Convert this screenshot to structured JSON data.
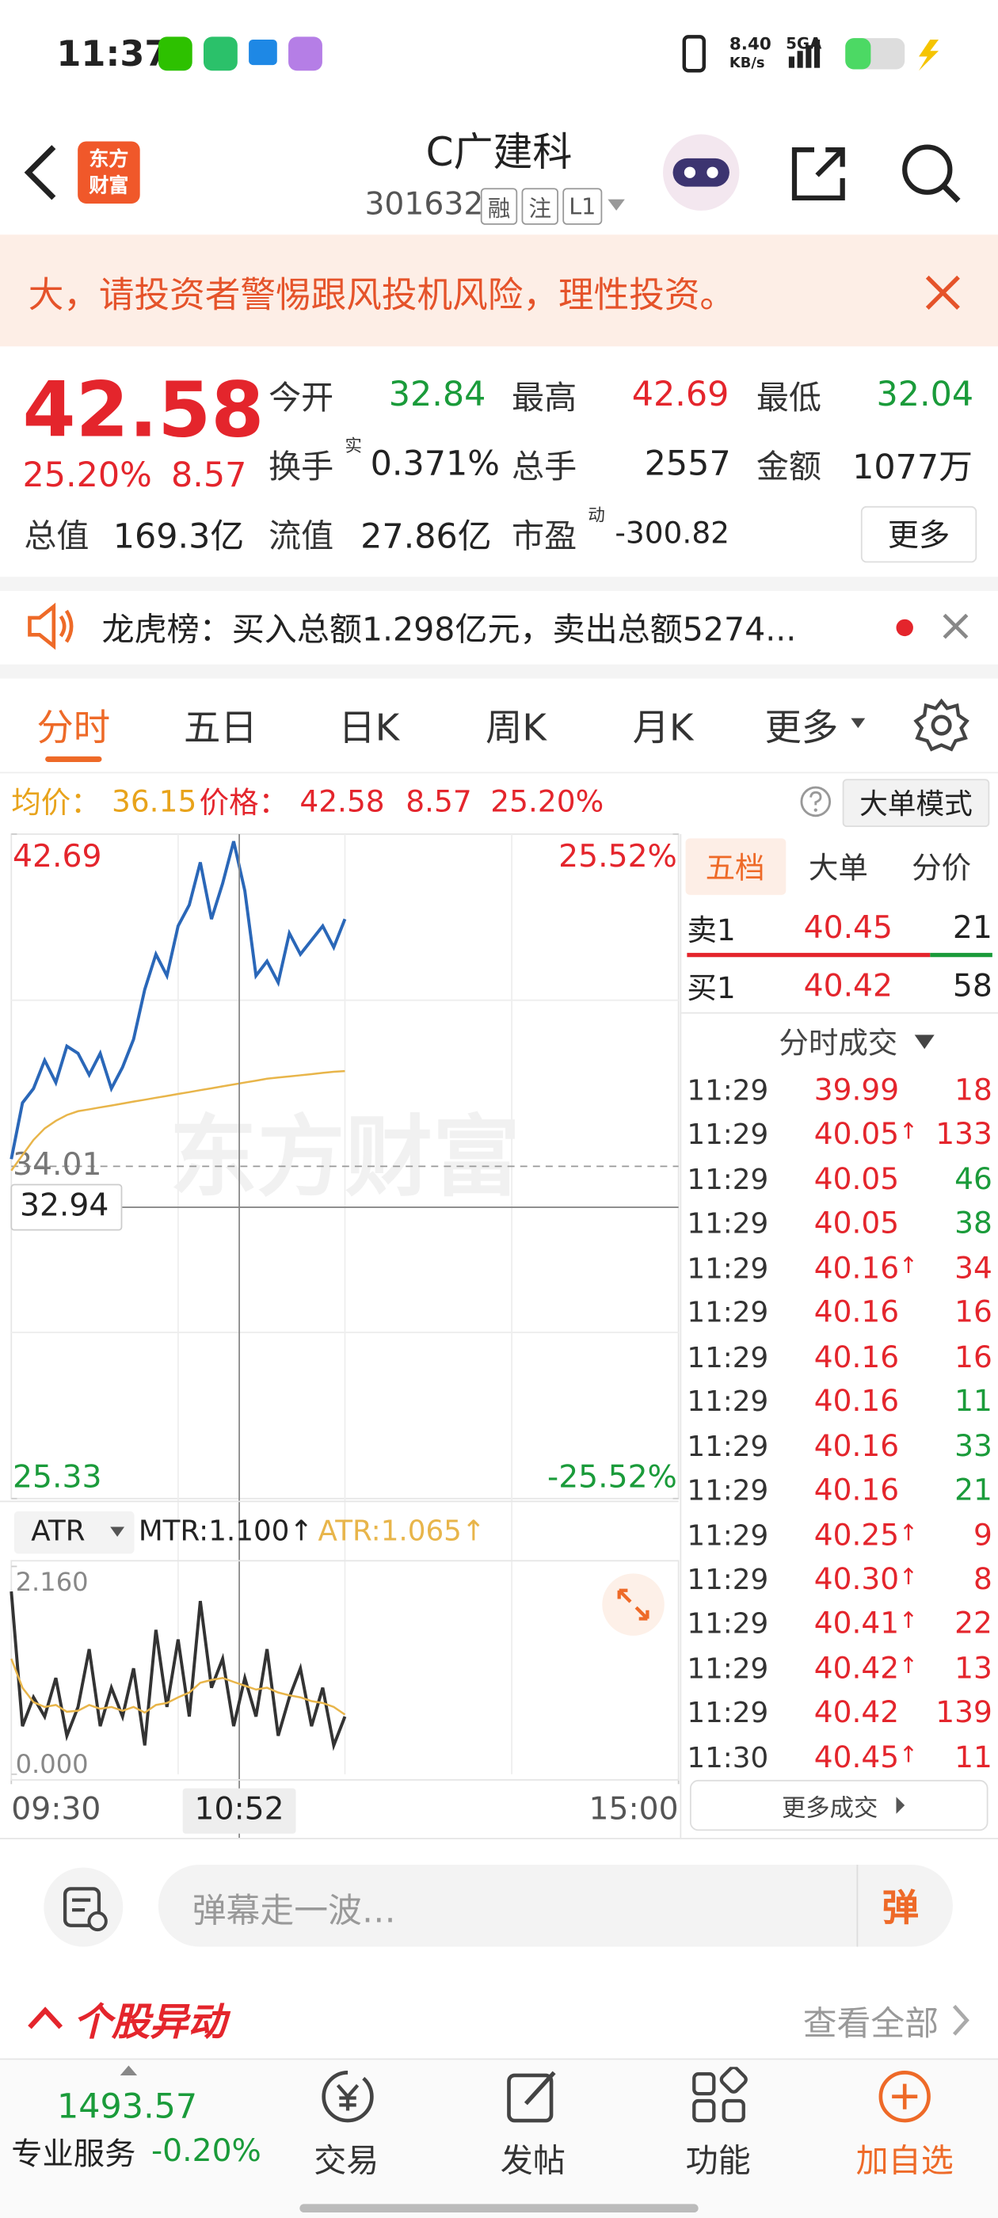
{
  "status_bar": {
    "time": "11:37",
    "net_speed": "8.40",
    "net_unit": "KB/s",
    "signal": "5GA"
  },
  "header": {
    "logo": [
      "东方",
      "财富"
    ],
    "title": "C广建科",
    "code": "301632",
    "badges": [
      "融",
      "注",
      "L1"
    ]
  },
  "warning": "大，请投资者警惕跟风投机风险，理性投资。",
  "quote": {
    "price": "42.58",
    "change_pct": "25.20%",
    "change": "8.57",
    "more": "更多",
    "fields": [
      {
        "label": "今开",
        "value": "32.84",
        "color": "#1a9b3a"
      },
      {
        "label": "最高",
        "value": "42.69",
        "color": "#e4252c"
      },
      {
        "label": "最低",
        "value": "32.04",
        "color": "#1a9b3a"
      },
      {
        "label": "换手",
        "note": "实",
        "value": "0.371%",
        "color": "#222222"
      },
      {
        "label": "总手",
        "value": "2557",
        "color": "#222222"
      },
      {
        "label": "金额",
        "value": "1077万",
        "color": "#222222"
      },
      {
        "label": "总值",
        "value": "169.3亿",
        "color": "#222222"
      },
      {
        "label": "流值",
        "value": "27.86亿",
        "color": "#222222"
      },
      {
        "label": "市盈",
        "note": "动",
        "value": "-300.82",
        "color": "#222222"
      }
    ]
  },
  "dragon_tiger": "龙虎榜：买入总额1.298亿元，卖出总额5274...",
  "tabs": {
    "items": [
      "分时",
      "五日",
      "日K",
      "周K",
      "月K",
      "更多"
    ],
    "active": 0
  },
  "info_bar": {
    "avg_label": "均价：",
    "avg": "36.15",
    "price_label": "价格：",
    "price": "42.58",
    "change": "8.57",
    "change_pct": "25.20%",
    "mode_button": "大单模式"
  },
  "chart_data": [
    {
      "type": "line",
      "watermark": "东方财富",
      "x": [
        "09:30",
        "09:34",
        "09:38",
        "09:42",
        "09:46",
        "09:50",
        "09:54",
        "09:58",
        "10:02",
        "10:06",
        "10:10",
        "10:14",
        "10:18",
        "10:22",
        "10:26",
        "10:30",
        "10:34",
        "10:38",
        "10:42",
        "10:46",
        "10:50",
        "10:54",
        "10:58",
        "11:02",
        "11:06",
        "11:10",
        "11:14",
        "11:18",
        "11:22",
        "11:26",
        "11:30"
      ],
      "series": [
        {
          "color": "#2a67b8",
          "values": [
            34.2,
            35.67,
            36.04,
            36.78,
            36.2,
            37.15,
            36.96,
            36.4,
            36.96,
            36.04,
            36.6,
            37.33,
            38.63,
            39.55,
            38.99,
            40.29,
            40.84,
            41.95,
            40.47,
            41.4,
            42.5,
            41.21,
            38.99,
            39.37,
            38.81,
            40.1,
            39.55,
            39.92,
            40.29,
            39.73,
            40.47
          ]
        },
        {
          "color": "#e8b54a",
          "values": [
            33.9,
            34.3,
            34.7,
            35.0,
            35.2,
            35.35,
            35.45,
            35.5,
            35.55,
            35.6,
            35.65,
            35.7,
            35.75,
            35.8,
            35.85,
            35.9,
            35.95,
            36.0,
            36.05,
            36.1,
            36.15,
            36.2,
            36.25,
            36.3,
            36.33,
            36.36,
            36.39,
            36.42,
            36.45,
            36.48,
            36.5
          ]
        }
      ],
      "xlim": [
        "09:30",
        "15:00"
      ],
      "xticks": [
        "09:30",
        "15:00"
      ],
      "ylim": [
        25.33,
        42.69
      ],
      "yticks": [
        25.33,
        34.01,
        42.69
      ],
      "y2lim": [
        -25.52,
        25.52
      ],
      "y2ticks": [
        {
          "value": -25.52,
          "label": "-25.52%"
        },
        {
          "value": 25.52,
          "label": "25.52%"
        }
      ],
      "crosshair": {
        "x": "10:52",
        "y": 32.94
      }
    },
    {
      "type": "line",
      "indicator": "ATR",
      "readouts": [
        "MTR:1.100↑",
        "ATR:1.065↑"
      ],
      "x": [
        "09:30",
        "09:34",
        "09:38",
        "09:42",
        "09:46",
        "09:50",
        "09:54",
        "09:58",
        "10:02",
        "10:06",
        "10:10",
        "10:14",
        "10:18",
        "10:22",
        "10:26",
        "10:30",
        "10:34",
        "10:38",
        "10:42",
        "10:46",
        "10:50",
        "10:54",
        "10:58",
        "11:02",
        "11:06",
        "11:10",
        "11:14",
        "11:18",
        "11:22",
        "11:26",
        "11:30"
      ],
      "series": [
        {
          "color": "#333333",
          "values": [
            1.9,
            0.5,
            0.8,
            0.6,
            1.0,
            0.4,
            0.7,
            1.3,
            0.5,
            0.9,
            0.6,
            1.1,
            0.3,
            1.5,
            0.7,
            1.4,
            0.6,
            1.8,
            0.9,
            1.2,
            0.5,
            1.0,
            0.6,
            1.3,
            0.4,
            0.8,
            1.1,
            0.5,
            0.9,
            0.3,
            0.6
          ]
        },
        {
          "color": "#e8b54a",
          "values": [
            1.2,
            0.9,
            0.75,
            0.7,
            0.72,
            0.65,
            0.66,
            0.72,
            0.68,
            0.7,
            0.66,
            0.7,
            0.64,
            0.72,
            0.74,
            0.8,
            0.85,
            0.95,
            0.98,
            1.0,
            0.96,
            0.92,
            0.88,
            0.9,
            0.85,
            0.82,
            0.8,
            0.76,
            0.74,
            0.7,
            0.62
          ]
        }
      ],
      "xlim": [
        "09:30",
        "15:00"
      ],
      "ylim": [
        0,
        2.16
      ],
      "yticks": [
        {
          "value": 0,
          "label": "0.000"
        },
        {
          "value": 2.16,
          "label": "2.160"
        }
      ]
    }
  ],
  "order_book": {
    "tabs": [
      "五档",
      "大单",
      "分价"
    ],
    "active": 0,
    "rows": [
      {
        "label": "卖1",
        "price": "40.45",
        "volume": "21"
      },
      {
        "label": "买1",
        "price": "40.42",
        "volume": "58"
      }
    ]
  },
  "trades": {
    "title": "分时成交",
    "more": "更多成交",
    "rows": [
      {
        "time": "11:29",
        "price": "39.99",
        "volume": "18",
        "color": "#e4252c"
      },
      {
        "time": "11:29",
        "price": "40.05",
        "mark": "↑",
        "volume": "133",
        "color": "#e4252c"
      },
      {
        "time": "11:29",
        "price": "40.05",
        "volume": "46",
        "color": "#1a9b3a"
      },
      {
        "time": "11:29",
        "price": "40.05",
        "volume": "38",
        "color": "#1a9b3a"
      },
      {
        "time": "11:29",
        "price": "40.16",
        "mark": "↑",
        "volume": "34",
        "color": "#e4252c"
      },
      {
        "time": "11:29",
        "price": "40.16",
        "volume": "16",
        "color": "#e4252c"
      },
      {
        "time": "11:29",
        "price": "40.16",
        "volume": "16",
        "color": "#e4252c"
      },
      {
        "time": "11:29",
        "price": "40.16",
        "volume": "11",
        "color": "#1a9b3a"
      },
      {
        "time": "11:29",
        "price": "40.16",
        "volume": "33",
        "color": "#1a9b3a"
      },
      {
        "time": "11:29",
        "price": "40.16",
        "volume": "21",
        "color": "#1a9b3a"
      },
      {
        "time": "11:29",
        "price": "40.25",
        "mark": "↑",
        "volume": "9",
        "color": "#e4252c"
      },
      {
        "time": "11:29",
        "price": "40.30",
        "mark": "↑",
        "volume": "8",
        "color": "#e4252c"
      },
      {
        "time": "11:29",
        "price": "40.41",
        "mark": "↑",
        "volume": "22",
        "color": "#e4252c"
      },
      {
        "time": "11:29",
        "price": "40.42",
        "mark": "↑",
        "volume": "13",
        "color": "#e4252c"
      },
      {
        "time": "11:29",
        "price": "40.42",
        "volume": "139",
        "color": "#e4252c"
      },
      {
        "time": "11:30",
        "price": "40.45",
        "mark": "↑",
        "volume": "11",
        "color": "#e4252c"
      }
    ]
  },
  "comment": {
    "placeholder": "弹幕走一波…",
    "button": "弹"
  },
  "alerts": {
    "title": "个股异动",
    "more": "查看全部"
  },
  "bottom_nav": {
    "index": "1493.57",
    "index_label": "专业服务",
    "index_change": "-0.20%",
    "items": [
      "交易",
      "发帖",
      "功能",
      "加自选"
    ]
  }
}
